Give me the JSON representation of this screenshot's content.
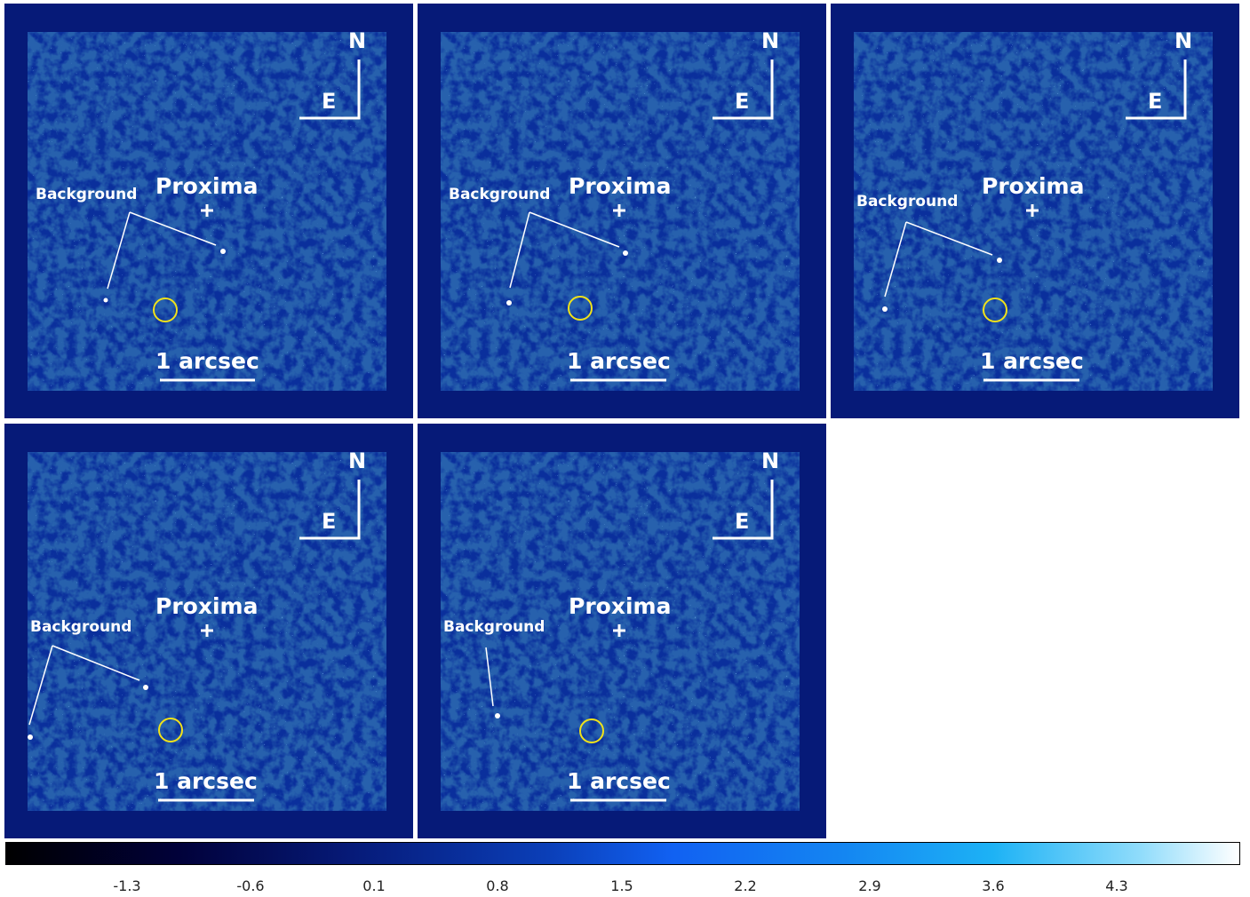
{
  "panels": [
    {
      "north": "N",
      "east": "E",
      "target": "Proxima",
      "background_label": "Background",
      "scale": "1 arcsec"
    },
    {
      "north": "N",
      "east": "E",
      "target": "Proxima",
      "background_label": "Background",
      "scale": "1 arcsec"
    },
    {
      "north": "N",
      "east": "E",
      "target": "Proxima",
      "background_label": "Background",
      "scale": "1 arcsec"
    },
    {
      "north": "N",
      "east": "E",
      "target": "Proxima",
      "background_label": "Background",
      "scale": "1 arcsec"
    },
    {
      "north": "N",
      "east": "E",
      "target": "Proxima",
      "background_label": "Background",
      "scale": "1 arcsec"
    }
  ],
  "colorbar": {
    "ticks": [
      "-1.3",
      "-0.6",
      "0.1",
      "0.8",
      "1.5",
      "2.2",
      "2.9",
      "3.6",
      "4.3"
    ]
  },
  "colors": {
    "frame": "#061a78",
    "circle": "#f0e21a",
    "annotation": "#ffffff"
  }
}
